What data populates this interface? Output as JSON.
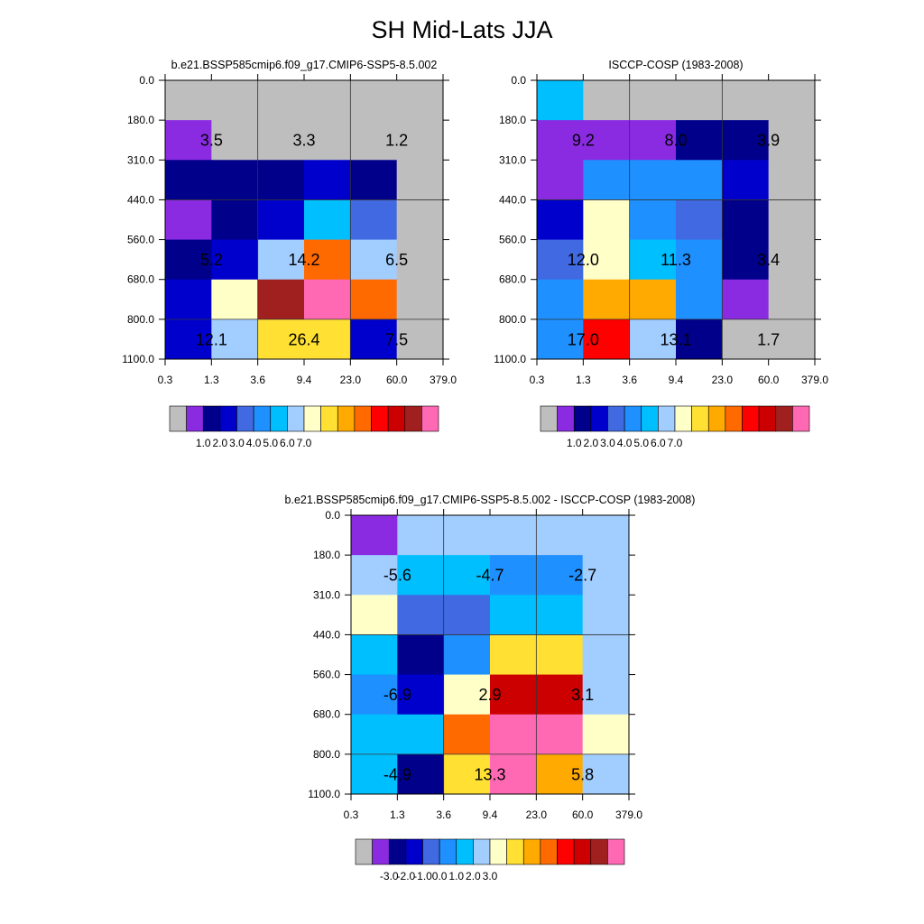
{
  "figure_title": "SH Mid-Lats JJA",
  "colors": {
    "missing": "#BEBEBE",
    "palette": [
      "#BEBEBE",
      "#8A2BE2",
      "#00008B",
      "#0000CD",
      "#4169E1",
      "#1E90FF",
      "#00BFFF",
      "#A2CDFF",
      "#FFFFC8",
      "#FFE033",
      "#FFAA00",
      "#FF6A00",
      "#FF0000",
      "#CC0000",
      "#A02020",
      "#FF69B4"
    ]
  },
  "chart_data": [
    {
      "type": "heatmap",
      "title": "b.e21.BSSP585cmip6.f09_g17.CMIP6-SSP5-8.5.002",
      "x_ticks": [
        "0.3",
        "1.3",
        "3.6",
        "9.4",
        "23.0",
        "60.0",
        "379.0"
      ],
      "y_ticks": [
        "0.0",
        "180.0",
        "310.0",
        "440.0",
        "560.0",
        "680.0",
        "800.0",
        "1100.0"
      ],
      "cells": [
        [
          0,
          0,
          0,
          0,
          0,
          0
        ],
        [
          1,
          0,
          0,
          0,
          0,
          0
        ],
        [
          2,
          2,
          2,
          3,
          2,
          0
        ],
        [
          1,
          2,
          3,
          6,
          4,
          0
        ],
        [
          2,
          3,
          7,
          11,
          7,
          0
        ],
        [
          3,
          8,
          14,
          15,
          11,
          0
        ],
        [
          3,
          7,
          9,
          9,
          3,
          0
        ]
      ],
      "annotations": [
        {
          "row": 1,
          "col": 0,
          "text": "3.5"
        },
        {
          "row": 1,
          "col": 2,
          "text": "3.3"
        },
        {
          "row": 1,
          "col": 4,
          "text": "1.2"
        },
        {
          "row": 4,
          "col": 0,
          "text": "5.2"
        },
        {
          "row": 4,
          "col": 2,
          "text": "14.2"
        },
        {
          "row": 4,
          "col": 4,
          "text": "6.5"
        },
        {
          "row": 6,
          "col": 0,
          "text": "12.1"
        },
        {
          "row": 6,
          "col": 2,
          "text": "26.4"
        },
        {
          "row": 6,
          "col": 4,
          "text": "7.5"
        }
      ],
      "colorbar_labels": [
        "1.0",
        "2.0",
        "3.0",
        "4.0",
        "5.0",
        "6.0",
        "7.0"
      ]
    },
    {
      "type": "heatmap",
      "title": "ISCCP-COSP (1983-2008)",
      "x_ticks": [
        "0.3",
        "1.3",
        "3.6",
        "9.4",
        "23.0",
        "60.0",
        "379.0"
      ],
      "y_ticks": [
        "0.0",
        "180.0",
        "310.0",
        "440.0",
        "560.0",
        "680.0",
        "800.0",
        "1100.0"
      ],
      "cells": [
        [
          6,
          0,
          0,
          0,
          0,
          0
        ],
        [
          1,
          1,
          1,
          2,
          2,
          0
        ],
        [
          1,
          5,
          5,
          5,
          3,
          0
        ],
        [
          3,
          8,
          5,
          4,
          2,
          0
        ],
        [
          4,
          8,
          6,
          5,
          2,
          0
        ],
        [
          5,
          10,
          10,
          5,
          1,
          0
        ],
        [
          5,
          12,
          7,
          2,
          0,
          0
        ]
      ],
      "annotations": [
        {
          "row": 1,
          "col": 0,
          "text": "9.2"
        },
        {
          "row": 1,
          "col": 2,
          "text": "8.0"
        },
        {
          "row": 1,
          "col": 4,
          "text": "3.9"
        },
        {
          "row": 4,
          "col": 0,
          "text": "12.0"
        },
        {
          "row": 4,
          "col": 2,
          "text": "11.3"
        },
        {
          "row": 4,
          "col": 4,
          "text": "3.4"
        },
        {
          "row": 6,
          "col": 0,
          "text": "17.0"
        },
        {
          "row": 6,
          "col": 2,
          "text": "13.1"
        },
        {
          "row": 6,
          "col": 4,
          "text": "1.7"
        }
      ],
      "colorbar_labels": [
        "1.0",
        "2.0",
        "3.0",
        "4.0",
        "5.0",
        "6.0",
        "7.0"
      ]
    },
    {
      "type": "heatmap",
      "title": "b.e21.BSSP585cmip6.f09_g17.CMIP6-SSP5-8.5.002 - ISCCP-COSP (1983-2008)",
      "x_ticks": [
        "0.3",
        "1.3",
        "3.6",
        "9.4",
        "23.0",
        "60.0",
        "379.0"
      ],
      "y_ticks": [
        "0.0",
        "180.0",
        "310.0",
        "440.0",
        "560.0",
        "680.0",
        "800.0",
        "1100.0"
      ],
      "cells": [
        [
          1,
          7,
          7,
          7,
          7,
          7
        ],
        [
          7,
          6,
          6,
          5,
          5,
          7
        ],
        [
          8,
          4,
          4,
          6,
          6,
          7
        ],
        [
          6,
          2,
          5,
          9,
          9,
          7
        ],
        [
          5,
          3,
          8,
          13,
          13,
          7
        ],
        [
          6,
          6,
          11,
          15,
          15,
          8
        ],
        [
          6,
          2,
          9,
          15,
          10,
          7
        ]
      ],
      "annotations": [
        {
          "row": 1,
          "col": 0,
          "text": "-5.6"
        },
        {
          "row": 1,
          "col": 2,
          "text": "-4.7"
        },
        {
          "row": 1,
          "col": 4,
          "text": "-2.7"
        },
        {
          "row": 4,
          "col": 0,
          "text": "-6.9"
        },
        {
          "row": 4,
          "col": 2,
          "text": "2.9"
        },
        {
          "row": 4,
          "col": 4,
          "text": "3.1"
        },
        {
          "row": 6,
          "col": 0,
          "text": "-4.9"
        },
        {
          "row": 6,
          "col": 2,
          "text": "13.3"
        },
        {
          "row": 6,
          "col": 4,
          "text": "5.8"
        }
      ],
      "colorbar_labels": [
        "-3.0",
        "-2.0",
        "-1.0",
        "0.0",
        "1.0",
        "2.0",
        "3.0"
      ]
    }
  ]
}
